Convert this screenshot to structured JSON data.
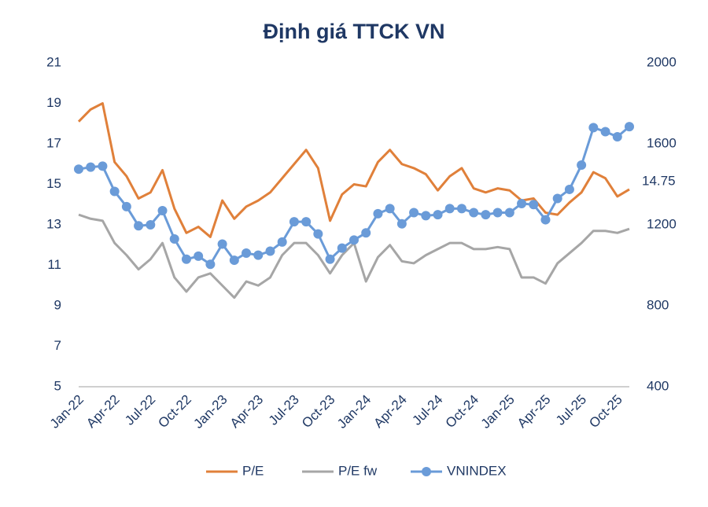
{
  "chart_data": {
    "type": "line",
    "title": "Định giá TTCK VN",
    "categories": [
      "Jan-22",
      null,
      null,
      "Apr-22",
      null,
      null,
      "Jul-22",
      null,
      null,
      "Oct-22",
      null,
      null,
      "Jan-23",
      null,
      null,
      "Apr-23",
      null,
      null,
      "Jul-23",
      null,
      null,
      "Oct-23",
      null,
      null,
      "Jan-24",
      null,
      null,
      "Apr-24",
      null,
      null,
      "Jul-24",
      null,
      null,
      "Oct-24",
      null,
      null,
      "Jan-25",
      null,
      null,
      "Apr-25",
      null,
      null,
      "Jul-25",
      null,
      null,
      "Oct-25",
      null
    ],
    "series": [
      {
        "name": "P/E",
        "color": "#e0803a",
        "values": [
          18.1,
          18.7,
          19.0,
          16.1,
          15.4,
          14.3,
          14.6,
          15.7,
          13.8,
          12.6,
          12.9,
          12.4,
          14.2,
          13.3,
          13.9,
          14.2,
          14.6,
          15.3,
          16.0,
          16.7,
          15.8,
          13.2,
          14.5,
          15.0,
          14.9,
          16.1,
          16.7,
          16.0,
          15.8,
          15.5,
          14.7,
          15.4,
          15.8,
          14.8,
          14.6,
          14.8,
          14.7,
          14.2,
          14.3,
          13.6,
          13.5,
          14.1,
          14.6,
          15.6,
          15.3,
          14.4,
          14.75
        ]
      },
      {
        "name": "P/E fw",
        "color": "#a6a6a6",
        "values": [
          13.5,
          13.3,
          13.2,
          12.1,
          11.5,
          10.8,
          11.3,
          12.1,
          10.4,
          9.7,
          10.4,
          10.6,
          10.0,
          9.4,
          10.2,
          10.0,
          10.4,
          11.5,
          12.1,
          12.1,
          11.5,
          10.6,
          11.5,
          12.1,
          10.2,
          11.4,
          12.0,
          11.2,
          11.1,
          11.5,
          11.8,
          12.1,
          12.1,
          11.8,
          11.8,
          11.9,
          11.8,
          10.4,
          10.4,
          10.1,
          11.1,
          11.6,
          12.1,
          12.7,
          12.7,
          12.6,
          12.8
        ]
      },
      {
        "name": "VNINDEX",
        "color": "#6a9bd8",
        "axis": "y2",
        "marker": "circle",
        "values": [
          1475,
          1485,
          1490,
          1365,
          1290,
          1195,
          1200,
          1270,
          1130,
          1030,
          1045,
          1005,
          1105,
          1025,
          1060,
          1050,
          1070,
          1115,
          1215,
          1215,
          1155,
          1030,
          1085,
          1125,
          1160,
          1255,
          1280,
          1205,
          1260,
          1245,
          1250,
          1280,
          1280,
          1260,
          1250,
          1260,
          1260,
          1305,
          1300,
          1225,
          1330,
          1375,
          1495,
          1680,
          1660,
          1635,
          1685
        ]
      }
    ],
    "ylim": [
      5,
      21
    ],
    "yticks": [
      5,
      7,
      9,
      11,
      13,
      15,
      17,
      19,
      21
    ],
    "y2lim": [
      400,
      2000
    ],
    "y2ticks": [
      400,
      800,
      1200,
      1600,
      2000
    ],
    "annotation": "14.75",
    "grid": false,
    "legend": "bottom"
  }
}
